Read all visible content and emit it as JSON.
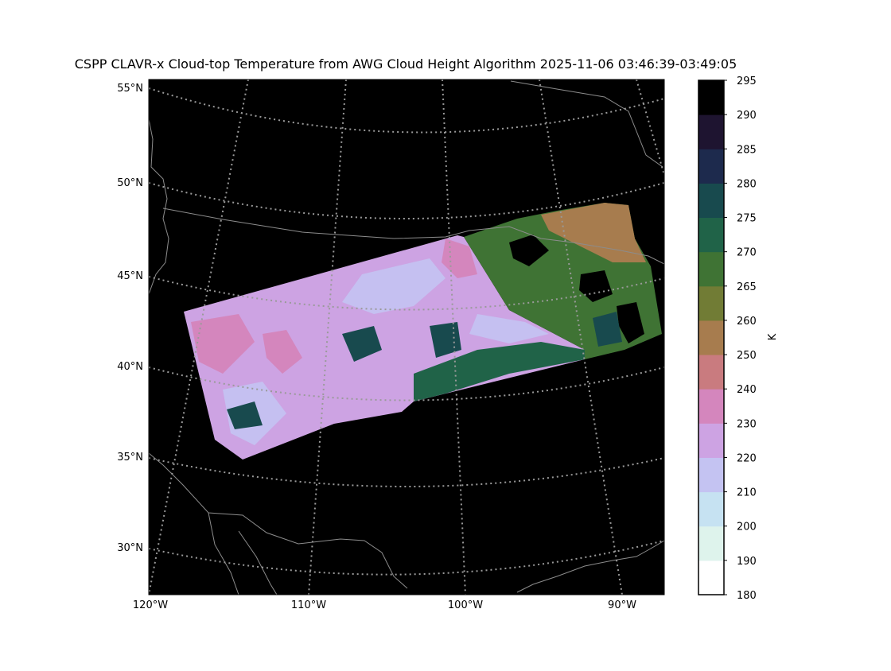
{
  "title": "CSPP CLAVR-x Cloud-top Temperature from AWG Cloud Height Algorithm 2025-11-06 03:46:39-03:49:05",
  "map": {
    "lat_labels": [
      "55°N",
      "50°N",
      "45°N",
      "40°N",
      "35°N",
      "30°N"
    ],
    "lon_labels": [
      "120°W",
      "110°W",
      "100°W",
      "90°W"
    ],
    "background_color": "#000000",
    "coastline_color": "#8c8c8c",
    "graticule_color": "#9a9a9a"
  },
  "colorbar": {
    "unit_label": "K",
    "ticks": [
      "180",
      "190",
      "200",
      "210",
      "220",
      "230",
      "240",
      "250",
      "260",
      "265",
      "270",
      "275",
      "280",
      "285",
      "290",
      "295"
    ],
    "colors": [
      "#ffffff",
      "#def3ec",
      "#c6e2f2",
      "#c4c3f2",
      "#cda3e3",
      "#d486bd",
      "#c97b7f",
      "#a77c4e",
      "#717c35",
      "#3f7334",
      "#206348",
      "#184a4e",
      "#1d2a4d",
      "#1e1430",
      "#000000"
    ]
  },
  "legend_levels_k": [
    180,
    190,
    200,
    210,
    220,
    230,
    240,
    250,
    260,
    265,
    270,
    275,
    280,
    285,
    290,
    295
  ]
}
